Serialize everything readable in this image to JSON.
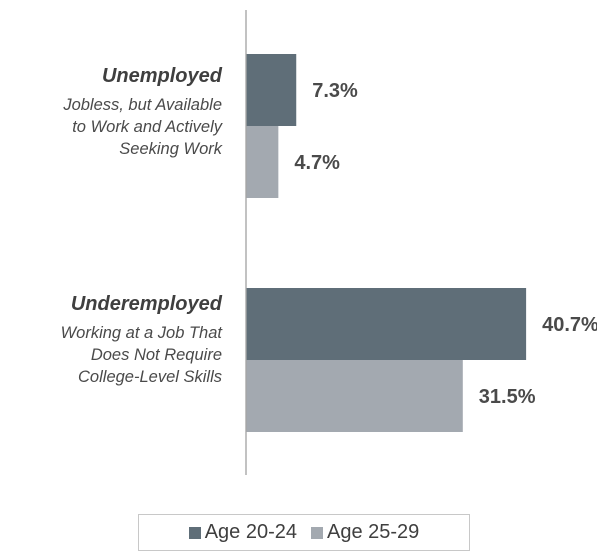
{
  "chart_data": {
    "type": "bar",
    "orientation": "horizontal",
    "categories": [
      {
        "title": "Unemployed",
        "description": [
          "Jobless, but Available",
          "to Work and Actively",
          "Seeking Work"
        ]
      },
      {
        "title": "Underemployed",
        "description": [
          "Working at a Job That",
          "Does Not Require",
          "College-Level Skills"
        ]
      }
    ],
    "series": [
      {
        "name": "Age 20-24",
        "color": "#5f6e78",
        "values": [
          7.3,
          40.7
        ],
        "labels": [
          "7.3%",
          "40.7%"
        ]
      },
      {
        "name": "Age 25-29",
        "color": "#a3a9b0",
        "values": [
          4.7,
          31.5
        ],
        "labels": [
          "4.7%",
          "31.5%"
        ]
      }
    ],
    "xlim": [
      0,
      51
    ],
    "grid": false,
    "legend_position": "bottom"
  }
}
